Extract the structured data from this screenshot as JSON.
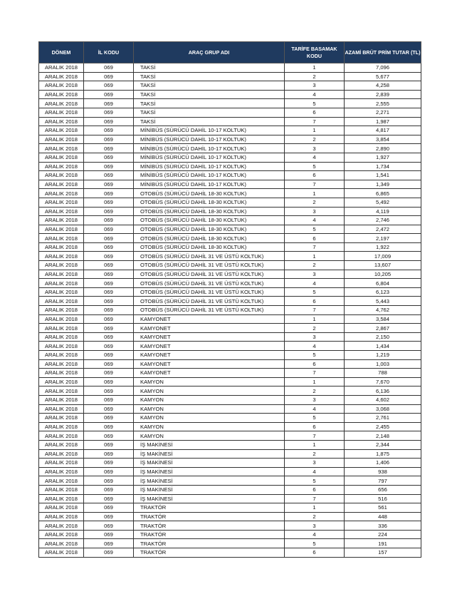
{
  "headers": [
    "DÖNEM",
    "İL KODU",
    "ARAÇ GRUP ADI",
    "TARİFE BASAMAK KODU",
    "AZAMİ BRÜT PRİM TUTAR (TL)"
  ],
  "rows": [
    [
      "ARALIK 2018",
      "069",
      "TAKSİ",
      "1",
      "7,096"
    ],
    [
      "ARALIK 2018",
      "069",
      "TAKSİ",
      "2",
      "5,677"
    ],
    [
      "ARALIK 2018",
      "069",
      "TAKSİ",
      "3",
      "4,258"
    ],
    [
      "ARALIK 2018",
      "069",
      "TAKSİ",
      "4",
      "2,839"
    ],
    [
      "ARALIK 2018",
      "069",
      "TAKSİ",
      "5",
      "2,555"
    ],
    [
      "ARALIK 2018",
      "069",
      "TAKSİ",
      "6",
      "2,271"
    ],
    [
      "ARALIK 2018",
      "069",
      "TAKSİ",
      "7",
      "1,987"
    ],
    [
      "ARALIK 2018",
      "069",
      "MİNİBÜS (SÜRÜCÜ DAHİL 10-17 KOLTUK)",
      "1",
      "4,817"
    ],
    [
      "ARALIK 2018",
      "069",
      "MİNİBÜS (SÜRÜCÜ DAHİL 10-17 KOLTUK)",
      "2",
      "3,854"
    ],
    [
      "ARALIK 2018",
      "069",
      "MİNİBÜS (SÜRÜCÜ DAHİL 10-17 KOLTUK)",
      "3",
      "2,890"
    ],
    [
      "ARALIK 2018",
      "069",
      "MİNİBÜS (SÜRÜCÜ DAHİL 10-17 KOLTUK)",
      "4",
      "1,927"
    ],
    [
      "ARALIK 2018",
      "069",
      "MİNİBÜS (SÜRÜCÜ DAHİL 10-17 KOLTUK)",
      "5",
      "1,734"
    ],
    [
      "ARALIK 2018",
      "069",
      "MİNİBÜS (SÜRÜCÜ DAHİL 10-17 KOLTUK)",
      "6",
      "1,541"
    ],
    [
      "ARALIK 2018",
      "069",
      "MİNİBÜS (SÜRÜCÜ DAHİL 10-17 KOLTUK)",
      "7",
      "1,349"
    ],
    [
      "ARALIK 2018",
      "069",
      "OTOBÜS (SÜRÜCÜ DAHİL 18-30 KOLTUK)",
      "1",
      "6,865"
    ],
    [
      "ARALIK 2018",
      "069",
      "OTOBÜS (SÜRÜCÜ DAHİL 18-30 KOLTUK)",
      "2",
      "5,492"
    ],
    [
      "ARALIK 2018",
      "069",
      "OTOBÜS (SÜRÜCÜ DAHİL 18-30 KOLTUK)",
      "3",
      "4,119"
    ],
    [
      "ARALIK 2018",
      "069",
      "OTOBÜS (SÜRÜCÜ DAHİL 18-30 KOLTUK)",
      "4",
      "2,746"
    ],
    [
      "ARALIK 2018",
      "069",
      "OTOBÜS (SÜRÜCÜ DAHİL 18-30 KOLTUK)",
      "5",
      "2,472"
    ],
    [
      "ARALIK 2018",
      "069",
      "OTOBÜS (SÜRÜCÜ DAHİL 18-30 KOLTUK)",
      "6",
      "2,197"
    ],
    [
      "ARALIK 2018",
      "069",
      "OTOBÜS (SÜRÜCÜ DAHİL 18-30 KOLTUK)",
      "7",
      "1,922"
    ],
    [
      "ARALIK 2018",
      "069",
      "OTOBÜS (SÜRÜCÜ DAHİL 31 VE ÜSTÜ KOLTUK)",
      "1",
      "17,009"
    ],
    [
      "ARALIK 2018",
      "069",
      "OTOBÜS (SÜRÜCÜ DAHİL 31 VE ÜSTÜ KOLTUK)",
      "2",
      "13,607"
    ],
    [
      "ARALIK 2018",
      "069",
      "OTOBÜS (SÜRÜCÜ DAHİL 31 VE ÜSTÜ KOLTUK)",
      "3",
      "10,205"
    ],
    [
      "ARALIK 2018",
      "069",
      "OTOBÜS (SÜRÜCÜ DAHİL 31 VE ÜSTÜ KOLTUK)",
      "4",
      "6,804"
    ],
    [
      "ARALIK 2018",
      "069",
      "OTOBÜS (SÜRÜCÜ DAHİL 31 VE ÜSTÜ KOLTUK)",
      "5",
      "6,123"
    ],
    [
      "ARALIK 2018",
      "069",
      "OTOBÜS (SÜRÜCÜ DAHİL 31 VE ÜSTÜ KOLTUK)",
      "6",
      "5,443"
    ],
    [
      "ARALIK 2018",
      "069",
      "OTOBÜS (SÜRÜCÜ DAHİL 31 VE ÜSTÜ KOLTUK)",
      "7",
      "4,762"
    ],
    [
      "ARALIK 2018",
      "069",
      "KAMYONET",
      "1",
      "3,584"
    ],
    [
      "ARALIK 2018",
      "069",
      "KAMYONET",
      "2",
      "2,867"
    ],
    [
      "ARALIK 2018",
      "069",
      "KAMYONET",
      "3",
      "2,150"
    ],
    [
      "ARALIK 2018",
      "069",
      "KAMYONET",
      "4",
      "1,434"
    ],
    [
      "ARALIK 2018",
      "069",
      "KAMYONET",
      "5",
      "1,219"
    ],
    [
      "ARALIK 2018",
      "069",
      "KAMYONET",
      "6",
      "1,003"
    ],
    [
      "ARALIK 2018",
      "069",
      "KAMYONET",
      "7",
      "788"
    ],
    [
      "ARALIK 2018",
      "069",
      "KAMYON",
      "1",
      "7,670"
    ],
    [
      "ARALIK 2018",
      "069",
      "KAMYON",
      "2",
      "6,136"
    ],
    [
      "ARALIK 2018",
      "069",
      "KAMYON",
      "3",
      "4,602"
    ],
    [
      "ARALIK 2018",
      "069",
      "KAMYON",
      "4",
      "3,068"
    ],
    [
      "ARALIK 2018",
      "069",
      "KAMYON",
      "5",
      "2,761"
    ],
    [
      "ARALIK 2018",
      "069",
      "KAMYON",
      "6",
      "2,455"
    ],
    [
      "ARALIK 2018",
      "069",
      "KAMYON",
      "7",
      "2,148"
    ],
    [
      "ARALIK 2018",
      "069",
      "İŞ MAKİNESİ",
      "1",
      "2,344"
    ],
    [
      "ARALIK 2018",
      "069",
      "İŞ MAKİNESİ",
      "2",
      "1,875"
    ],
    [
      "ARALIK 2018",
      "069",
      "İŞ MAKİNESİ",
      "3",
      "1,406"
    ],
    [
      "ARALIK 2018",
      "069",
      "İŞ MAKİNESİ",
      "4",
      "938"
    ],
    [
      "ARALIK 2018",
      "069",
      "İŞ MAKİNESİ",
      "5",
      "797"
    ],
    [
      "ARALIK 2018",
      "069",
      "İŞ MAKİNESİ",
      "6",
      "656"
    ],
    [
      "ARALIK 2018",
      "069",
      "İŞ MAKİNESİ",
      "7",
      "516"
    ],
    [
      "ARALIK 2018",
      "069",
      "TRAKTÖR",
      "1",
      "561"
    ],
    [
      "ARALIK 2018",
      "069",
      "TRAKTÖR",
      "2",
      "448"
    ],
    [
      "ARALIK 2018",
      "069",
      "TRAKTÖR",
      "3",
      "336"
    ],
    [
      "ARALIK 2018",
      "069",
      "TRAKTÖR",
      "4",
      "224"
    ],
    [
      "ARALIK 2018",
      "069",
      "TRAKTÖR",
      "5",
      "191"
    ],
    [
      "ARALIK 2018",
      "069",
      "TRAKTÖR",
      "6",
      "157"
    ]
  ],
  "colors": {
    "header_bg": "#1f3a5f",
    "header_text": "#ffffff"
  }
}
